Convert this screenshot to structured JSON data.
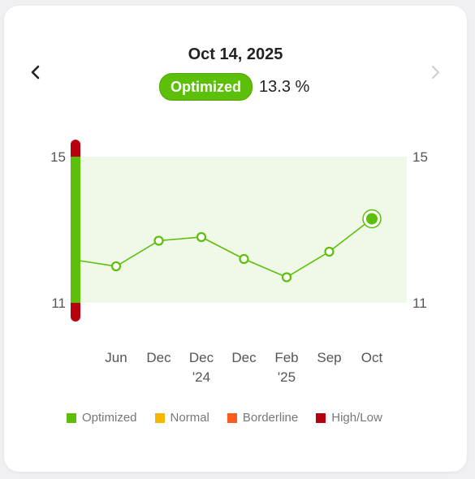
{
  "header": {
    "date": "Oct 14, 2025",
    "status_label": "Optimized",
    "status_value": "13.3 %"
  },
  "icons": {
    "prev": "chevron-left-icon",
    "next": "chevron-right-icon"
  },
  "colors": {
    "optimized": "#5cbf0a",
    "normal": "#f5b800",
    "borderline": "#ff5a1f",
    "high_low": "#b8000e",
    "range_fill": "#f0f9e8",
    "next_disabled": "#cfcfcf"
  },
  "legend": [
    {
      "label": "Optimized",
      "color": "#5cbf0a"
    },
    {
      "label": "Normal",
      "color": "#f5b800"
    },
    {
      "label": "Borderline",
      "color": "#ff5a1f"
    },
    {
      "label": "High/Low",
      "color": "#b8000e"
    }
  ],
  "chart_data": {
    "type": "line",
    "y_ticks_left": [
      "15",
      "11"
    ],
    "y_ticks_right": [
      "15",
      "11"
    ],
    "ylim": [
      11,
      15
    ],
    "optimized_range": [
      11,
      15
    ],
    "x_labels": [
      [
        "Jun"
      ],
      [
        "Dec"
      ],
      [
        "Dec",
        "'24"
      ],
      [
        "Dec"
      ],
      [
        "Feb",
        "'25"
      ],
      [
        "Sep"
      ],
      [
        "Oct"
      ]
    ],
    "series": [
      {
        "values": [
          12.0,
          12.7,
          12.8,
          12.2,
          11.7,
          12.4,
          13.3
        ],
        "prior_value": 12.15
      }
    ],
    "selected_index": 6,
    "grid": false
  }
}
